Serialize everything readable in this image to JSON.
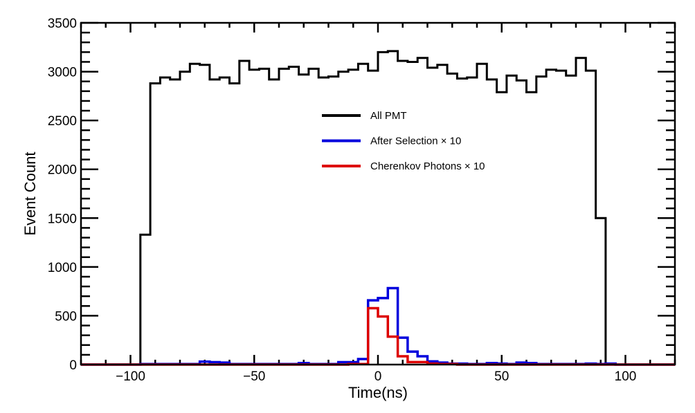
{
  "chart_data": {
    "type": "line",
    "style": "step-histogram",
    "title": "",
    "xlabel": "Time(ns)",
    "ylabel": "Event Count",
    "xlim": [
      -120,
      120
    ],
    "ylim": [
      0,
      3500
    ],
    "x_ticks": [
      -100,
      -50,
      0,
      50,
      100
    ],
    "x_tick_labels": [
      "−100",
      "−50",
      "0",
      "50",
      "100"
    ],
    "y_ticks": [
      0,
      500,
      1000,
      1500,
      2000,
      2500,
      3000,
      3500
    ],
    "y_tick_labels": [
      "0",
      "500",
      "1000",
      "1500",
      "2000",
      "2500",
      "3000",
      "3500"
    ],
    "grid": false,
    "legend_placement": "top-center",
    "bin_width": 4,
    "bin_edges_start": -120,
    "series": [
      {
        "name": "All PMT",
        "color": "#000000",
        "values": [
          0,
          0,
          0,
          0,
          0,
          0,
          1330,
          2880,
          2940,
          2920,
          3000,
          3080,
          3070,
          2920,
          2940,
          2880,
          3110,
          3020,
          3030,
          2920,
          3030,
          3050,
          2970,
          3030,
          2940,
          2950,
          3000,
          3020,
          3080,
          3010,
          3200,
          3210,
          3110,
          3100,
          3140,
          3040,
          3070,
          2980,
          2930,
          2940,
          3080,
          2920,
          2790,
          2960,
          2910,
          2790,
          2950,
          3020,
          3010,
          2960,
          3140,
          3010,
          1500,
          0,
          0,
          0,
          0,
          0,
          0,
          0
        ]
      },
      {
        "name": "After Selection × 10",
        "color": "#0000dd",
        "values": [
          0,
          0,
          0,
          0,
          0,
          0,
          5,
          5,
          5,
          5,
          5,
          5,
          30,
          25,
          20,
          5,
          5,
          5,
          5,
          5,
          5,
          5,
          15,
          5,
          5,
          5,
          25,
          25,
          57,
          658,
          681,
          783,
          275,
          133,
          85,
          33,
          20,
          10,
          10,
          5,
          5,
          15,
          10,
          5,
          20,
          15,
          5,
          5,
          5,
          5,
          5,
          10,
          5,
          10,
          0,
          0,
          0,
          0,
          0,
          0
        ]
      },
      {
        "name": "Cherenkov Photons × 10",
        "color": "#dd0000",
        "values": [
          0,
          0,
          0,
          0,
          0,
          0,
          0,
          0,
          0,
          0,
          0,
          0,
          0,
          0,
          0,
          0,
          0,
          0,
          0,
          0,
          0,
          0,
          0,
          0,
          0,
          0,
          0,
          5,
          5,
          577,
          492,
          286,
          85,
          26,
          26,
          10,
          5,
          5,
          0,
          0,
          0,
          0,
          0,
          0,
          0,
          0,
          0,
          0,
          0,
          0,
          0,
          0,
          0,
          0,
          0,
          0,
          0,
          0,
          0,
          0
        ]
      }
    ]
  }
}
